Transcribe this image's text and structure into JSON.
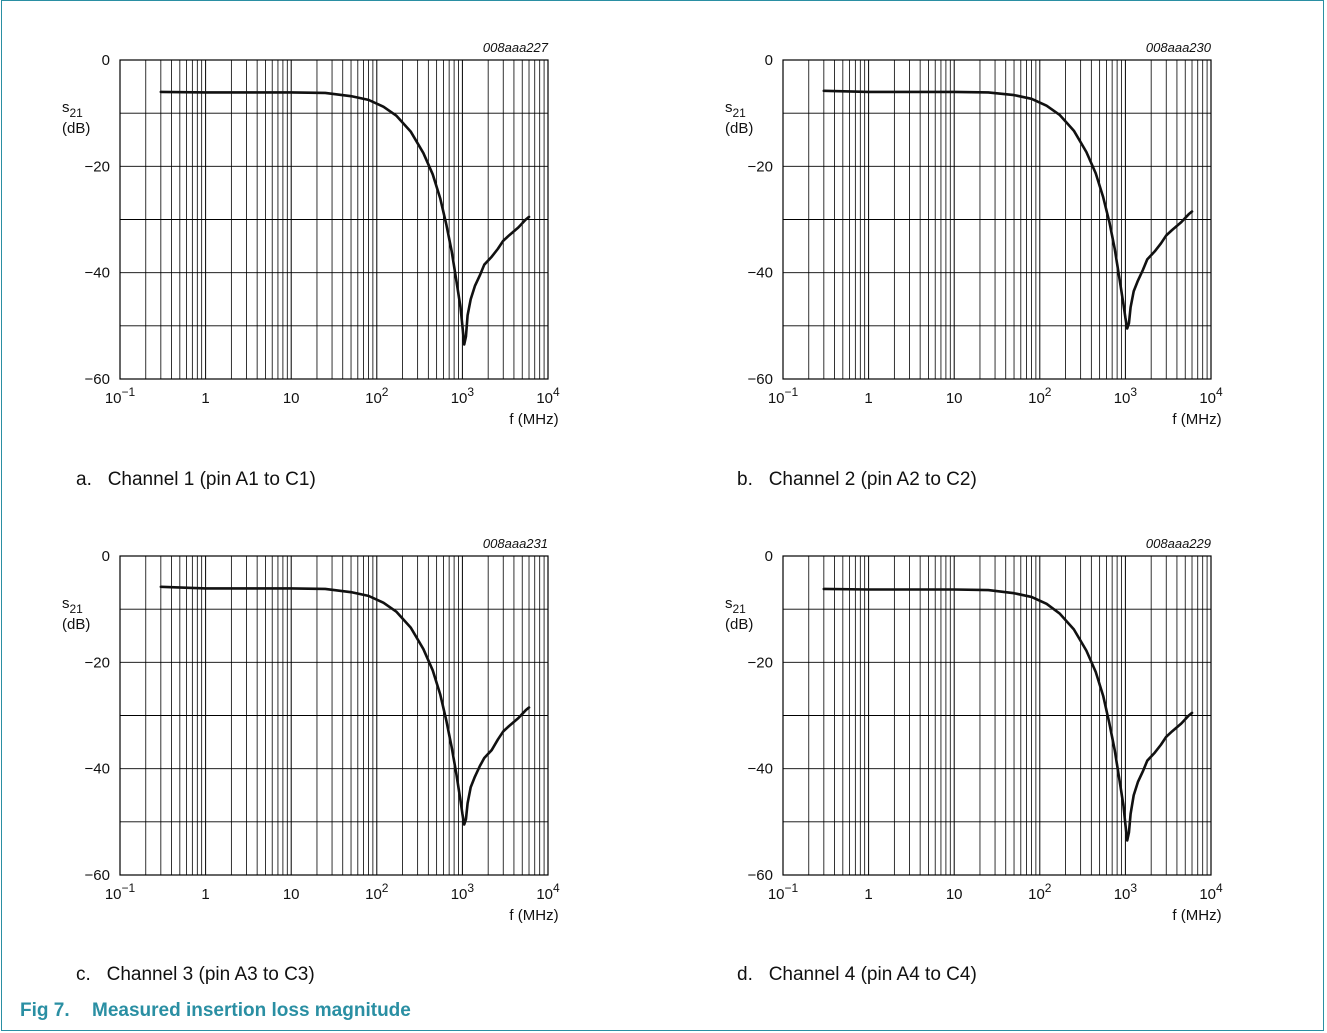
{
  "figure": {
    "label": "Fig 7.",
    "title": "Measured insertion loss magnitude"
  },
  "chart_data": [
    {
      "type": "line",
      "code": "008aaa227",
      "caption_letter": "a.",
      "caption": "Channel 1 (pin A1 to C1)",
      "ylabel_main": "s",
      "ylabel_sub": "21",
      "ylabel_unit": "(dB)",
      "xlabel": "f (MHz)",
      "x_scale": "log",
      "xlim": [
        0.1,
        10000
      ],
      "ylim": [
        -60,
        0
      ],
      "y_ticks": [
        {
          "v": 0,
          "label": "0"
        },
        {
          "v": -20,
          "label": "−20"
        },
        {
          "v": -40,
          "label": "−40"
        },
        {
          "v": -60,
          "label": "−60"
        }
      ],
      "x_ticks": [
        {
          "v": 0.1,
          "base": "10",
          "exp": "−1"
        },
        {
          "v": 1,
          "base": "1",
          "exp": ""
        },
        {
          "v": 10,
          "base": "10",
          "exp": ""
        },
        {
          "v": 100,
          "base": "10",
          "exp": "2"
        },
        {
          "v": 1000,
          "base": "10",
          "exp": "3"
        },
        {
          "v": 10000,
          "base": "10",
          "exp": "4"
        }
      ],
      "grid": true,
      "series": [
        {
          "x": [
            0.3,
            1,
            3,
            10,
            25,
            50,
            80,
            120,
            170,
            250,
            350,
            450,
            550,
            650,
            750,
            850,
            950,
            1000,
            1050,
            1100,
            1150,
            1250,
            1400,
            1600,
            1800,
            2200,
            2600,
            3000,
            3500,
            4500,
            5500,
            6000
          ],
          "y": [
            -6,
            -6.1,
            -6.1,
            -6.1,
            -6.2,
            -6.8,
            -7.5,
            -8.8,
            -10.5,
            -13.5,
            -17.5,
            -21.5,
            -26,
            -31,
            -36,
            -41.5,
            -46.5,
            -50,
            -53.5,
            -52,
            -48,
            -45,
            -42.5,
            -40.5,
            -38.5,
            -37,
            -35.5,
            -34,
            -33,
            -31.5,
            -30,
            -29.5
          ]
        }
      ]
    },
    {
      "type": "line",
      "code": "008aaa230",
      "caption_letter": "b.",
      "caption": "Channel 2 (pin A2 to C2)",
      "ylabel_main": "s",
      "ylabel_sub": "21",
      "ylabel_unit": "(dB)",
      "xlabel": "f (MHz)",
      "x_scale": "log",
      "xlim": [
        0.1,
        10000
      ],
      "ylim": [
        -60,
        0
      ],
      "y_ticks": [
        {
          "v": 0,
          "label": "0"
        },
        {
          "v": -20,
          "label": "−20"
        },
        {
          "v": -40,
          "label": "−40"
        },
        {
          "v": -60,
          "label": "−60"
        }
      ],
      "x_ticks": [
        {
          "v": 0.1,
          "base": "10",
          "exp": "−1"
        },
        {
          "v": 1,
          "base": "1",
          "exp": ""
        },
        {
          "v": 10,
          "base": "10",
          "exp": ""
        },
        {
          "v": 100,
          "base": "10",
          "exp": "2"
        },
        {
          "v": 1000,
          "base": "10",
          "exp": "3"
        },
        {
          "v": 10000,
          "base": "10",
          "exp": "4"
        }
      ],
      "grid": true,
      "series": [
        {
          "x": [
            0.3,
            1,
            3,
            10,
            25,
            50,
            80,
            120,
            170,
            250,
            350,
            450,
            550,
            650,
            750,
            850,
            950,
            1000,
            1050,
            1100,
            1150,
            1250,
            1400,
            1600,
            1800,
            2200,
            2600,
            3000,
            3500,
            4500,
            5500,
            6000
          ],
          "y": [
            -5.8,
            -6,
            -6,
            -6,
            -6.1,
            -6.6,
            -7.3,
            -8.6,
            -10.3,
            -13.3,
            -17.3,
            -21.3,
            -25.8,
            -30.5,
            -35.5,
            -41,
            -46,
            -48.5,
            -50.5,
            -49.5,
            -46.5,
            -43.5,
            -41.5,
            -39.5,
            -37.5,
            -36,
            -34.5,
            -33,
            -32,
            -30.5,
            -29,
            -28.5
          ]
        }
      ]
    },
    {
      "type": "line",
      "code": "008aaa231",
      "caption_letter": "c.",
      "caption": "Channel 3 (pin A3 to C3)",
      "ylabel_main": "s",
      "ylabel_sub": "21",
      "ylabel_unit": "(dB)",
      "xlabel": "f (MHz)",
      "x_scale": "log",
      "xlim": [
        0.1,
        10000
      ],
      "ylim": [
        -60,
        0
      ],
      "y_ticks": [
        {
          "v": 0,
          "label": "0"
        },
        {
          "v": -20,
          "label": "−20"
        },
        {
          "v": -40,
          "label": "−40"
        },
        {
          "v": -60,
          "label": "−60"
        }
      ],
      "x_ticks": [
        {
          "v": 0.1,
          "base": "10",
          "exp": "−1"
        },
        {
          "v": 1,
          "base": "1",
          "exp": ""
        },
        {
          "v": 10,
          "base": "10",
          "exp": ""
        },
        {
          "v": 100,
          "base": "10",
          "exp": "2"
        },
        {
          "v": 1000,
          "base": "10",
          "exp": "3"
        },
        {
          "v": 10000,
          "base": "10",
          "exp": "4"
        }
      ],
      "grid": true,
      "series": [
        {
          "x": [
            0.3,
            1,
            3,
            10,
            25,
            50,
            80,
            120,
            170,
            250,
            350,
            450,
            550,
            650,
            750,
            850,
            950,
            1000,
            1050,
            1100,
            1150,
            1250,
            1400,
            1600,
            1800,
            2200,
            2600,
            3000,
            3500,
            4500,
            5500,
            6000
          ],
          "y": [
            -5.8,
            -6.1,
            -6.1,
            -6.1,
            -6.2,
            -6.8,
            -7.5,
            -8.8,
            -10.5,
            -13.5,
            -17.5,
            -21.5,
            -26,
            -31,
            -36,
            -41,
            -46,
            -48.5,
            -50.5,
            -49.5,
            -46.5,
            -43.5,
            -41.5,
            -39.5,
            -38,
            -36.5,
            -34.5,
            -33,
            -32,
            -30.5,
            -29,
            -28.5
          ]
        }
      ]
    },
    {
      "type": "line",
      "code": "008aaa229",
      "caption_letter": "d.",
      "caption": "Channel 4 (pin A4 to C4)",
      "ylabel_main": "s",
      "ylabel_sub": "21",
      "ylabel_unit": "(dB)",
      "xlabel": "f (MHz)",
      "x_scale": "log",
      "xlim": [
        0.1,
        10000
      ],
      "ylim": [
        -60,
        0
      ],
      "y_ticks": [
        {
          "v": 0,
          "label": "0"
        },
        {
          "v": -20,
          "label": "−20"
        },
        {
          "v": -40,
          "label": "−40"
        },
        {
          "v": -60,
          "label": "−60"
        }
      ],
      "x_ticks": [
        {
          "v": 0.1,
          "base": "10",
          "exp": "−1"
        },
        {
          "v": 1,
          "base": "1",
          "exp": ""
        },
        {
          "v": 10,
          "base": "10",
          "exp": ""
        },
        {
          "v": 100,
          "base": "10",
          "exp": "2"
        },
        {
          "v": 1000,
          "base": "10",
          "exp": "3"
        },
        {
          "v": 10000,
          "base": "10",
          "exp": "4"
        }
      ],
      "grid": true,
      "series": [
        {
          "x": [
            0.3,
            1,
            3,
            10,
            25,
            50,
            80,
            120,
            170,
            250,
            350,
            450,
            550,
            650,
            750,
            850,
            950,
            1000,
            1050,
            1100,
            1150,
            1250,
            1400,
            1600,
            1800,
            2200,
            2600,
            3000,
            3500,
            4500,
            5500,
            6000
          ],
          "y": [
            -6.2,
            -6.3,
            -6.3,
            -6.3,
            -6.4,
            -7,
            -7.7,
            -9,
            -10.8,
            -13.8,
            -17.8,
            -21.8,
            -26.3,
            -31.5,
            -36.5,
            -42,
            -47,
            -50.5,
            -53.5,
            -52,
            -48.5,
            -45,
            -42.5,
            -40.5,
            -38.5,
            -37,
            -35.5,
            -34,
            -33,
            -31.5,
            -30,
            -29.5
          ]
        }
      ]
    }
  ]
}
